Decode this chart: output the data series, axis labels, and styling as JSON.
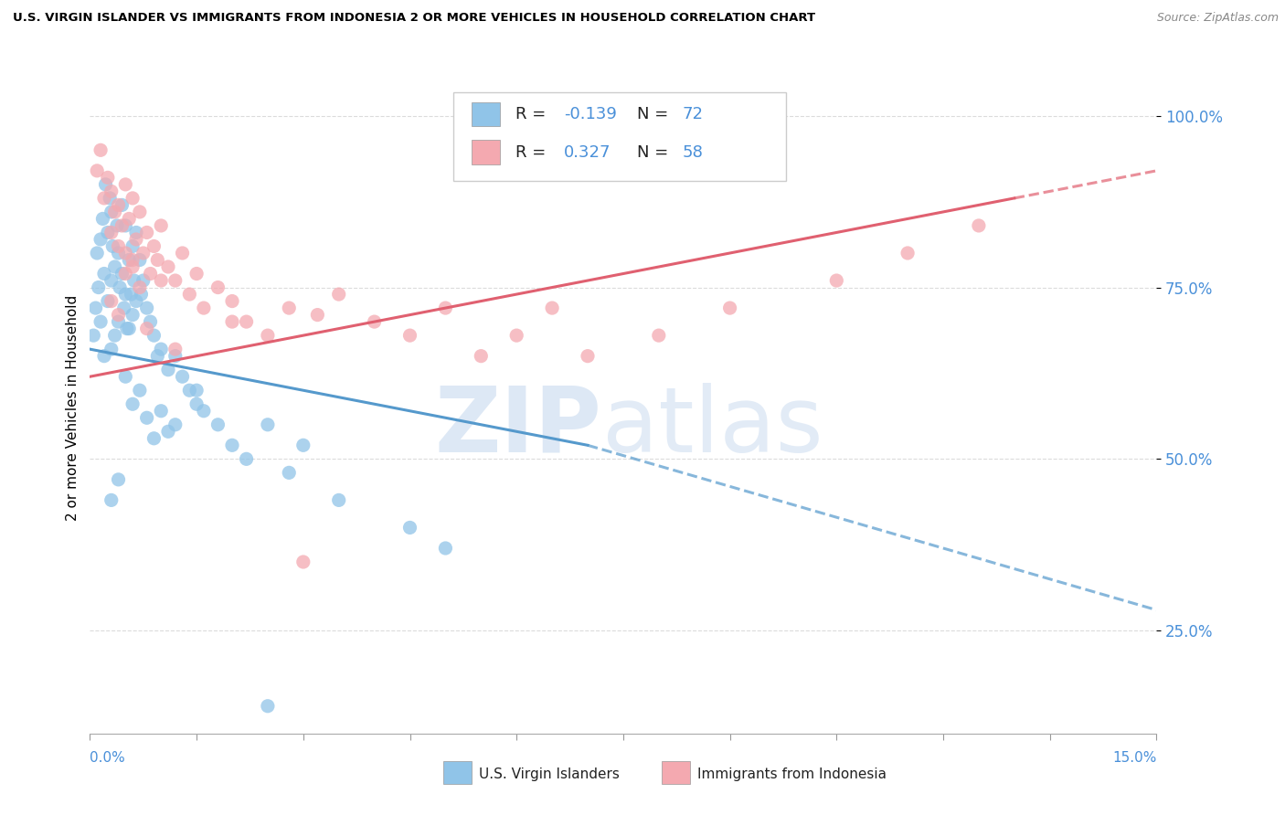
{
  "title": "U.S. VIRGIN ISLANDER VS IMMIGRANTS FROM INDONESIA 2 OR MORE VEHICLES IN HOUSEHOLD CORRELATION CHART",
  "source": "Source: ZipAtlas.com",
  "xlim": [
    0.0,
    15.0
  ],
  "ylim": [
    10.0,
    105.0
  ],
  "ytick_vals": [
    25.0,
    50.0,
    75.0,
    100.0
  ],
  "ytick_labels": [
    "25.0%",
    "50.0%",
    "75.0%",
    "100.0%"
  ],
  "blue_R": -0.139,
  "blue_N": 72,
  "pink_R": 0.327,
  "pink_N": 58,
  "blue_color": "#90c4e8",
  "pink_color": "#f4a9b0",
  "blue_line_color": "#5599cc",
  "pink_line_color": "#e06070",
  "legend1_label": "U.S. Virgin Islanders",
  "legend2_label": "Immigrants from Indonesia",
  "background_color": "#ffffff",
  "blue_scatter_x": [
    0.05,
    0.08,
    0.1,
    0.12,
    0.15,
    0.15,
    0.18,
    0.2,
    0.2,
    0.22,
    0.25,
    0.25,
    0.28,
    0.3,
    0.3,
    0.3,
    0.32,
    0.35,
    0.35,
    0.38,
    0.4,
    0.4,
    0.42,
    0.45,
    0.45,
    0.48,
    0.5,
    0.5,
    0.52,
    0.55,
    0.55,
    0.58,
    0.6,
    0.6,
    0.62,
    0.65,
    0.65,
    0.7,
    0.72,
    0.75,
    0.8,
    0.85,
    0.9,
    0.95,
    1.0,
    1.1,
    1.2,
    1.3,
    1.4,
    1.5,
    1.6,
    1.8,
    2.0,
    2.2,
    2.5,
    3.0,
    0.5,
    0.6,
    0.7,
    0.8,
    0.9,
    1.0,
    1.1,
    2.8,
    3.5,
    4.5,
    5.0,
    0.3,
    0.4,
    1.2,
    1.5,
    2.5
  ],
  "blue_scatter_y": [
    68,
    72,
    80,
    75,
    82,
    70,
    85,
    77,
    65,
    90,
    83,
    73,
    88,
    86,
    76,
    66,
    81,
    78,
    68,
    84,
    80,
    70,
    75,
    87,
    77,
    72,
    84,
    74,
    69,
    79,
    69,
    74,
    81,
    71,
    76,
    83,
    73,
    79,
    74,
    76,
    72,
    70,
    68,
    65,
    66,
    63,
    65,
    62,
    60,
    58,
    57,
    55,
    52,
    50,
    55,
    52,
    62,
    58,
    60,
    56,
    53,
    57,
    54,
    48,
    44,
    40,
    37,
    44,
    47,
    55,
    60,
    14
  ],
  "pink_scatter_x": [
    0.1,
    0.15,
    0.2,
    0.25,
    0.3,
    0.3,
    0.35,
    0.4,
    0.4,
    0.45,
    0.5,
    0.5,
    0.55,
    0.6,
    0.6,
    0.65,
    0.7,
    0.75,
    0.8,
    0.85,
    0.9,
    0.95,
    1.0,
    1.1,
    1.2,
    1.3,
    1.4,
    1.5,
    1.6,
    1.8,
    2.0,
    2.2,
    2.5,
    2.8,
    3.2,
    3.5,
    4.0,
    4.5,
    5.0,
    5.5,
    6.0,
    6.5,
    7.0,
    8.0,
    9.0,
    10.5,
    11.5,
    12.5,
    0.3,
    0.4,
    0.5,
    0.6,
    0.7,
    0.8,
    1.0,
    1.2,
    2.0,
    3.0
  ],
  "pink_scatter_y": [
    92,
    95,
    88,
    91,
    89,
    83,
    86,
    87,
    81,
    84,
    90,
    80,
    85,
    88,
    78,
    82,
    86,
    80,
    83,
    77,
    81,
    79,
    84,
    78,
    76,
    80,
    74,
    77,
    72,
    75,
    73,
    70,
    68,
    72,
    71,
    74,
    70,
    68,
    72,
    65,
    68,
    72,
    65,
    68,
    72,
    76,
    80,
    84,
    73,
    71,
    77,
    79,
    75,
    69,
    76,
    66,
    70,
    35
  ],
  "blue_trend_x0": 0.0,
  "blue_trend_y0": 66.0,
  "blue_trend_x1": 7.0,
  "blue_trend_y1": 52.0,
  "blue_dash_x0": 7.0,
  "blue_dash_y0": 52.0,
  "blue_dash_x1": 15.0,
  "blue_dash_y1": 28.0,
  "pink_trend_x0": 0.0,
  "pink_trend_y0": 62.0,
  "pink_trend_x1": 13.0,
  "pink_trend_y1": 88.0,
  "pink_dash_x0": 13.0,
  "pink_dash_y0": 88.0,
  "pink_dash_x1": 15.0,
  "pink_dash_y1": 92.0
}
